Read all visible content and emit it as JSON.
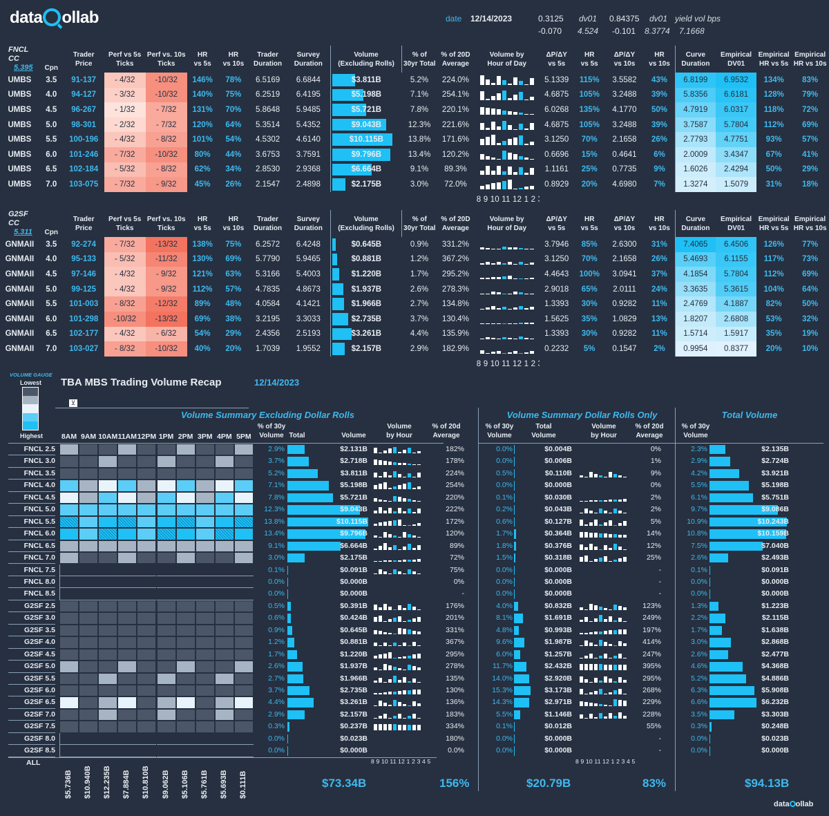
{
  "brand": {
    "name_pre": "data",
    "name_post": "ollab"
  },
  "header": {
    "date_label": "date",
    "date": "12/14/2023",
    "r1": [
      "0.3125",
      "dv01",
      "0.84375",
      "dv01",
      "yield vol bps"
    ],
    "r2": [
      "-0.070",
      "4.524",
      "-0.101",
      "8.3774",
      "7.1668"
    ]
  },
  "cols": {
    "cpn": "Cpn",
    "trader": "Trader\nPrice",
    "p5": "Perf vs 5s\nTicks",
    "p10": "Perf vs. 10s\nTicks",
    "hr5": "HR\nvs 5s",
    "hr10": "HR\nvs 10s",
    "tdur": "Trader\nDuration",
    "sdur": "Survey\nDuration",
    "vol": "Volume\n(Excluding Rolls)",
    "pct30": "% of\n30yr Total",
    "pct20": "% of 20D\nAverage",
    "vbh": "Volume by\nHour of Day",
    "dpdy5": "ΔP/ΔY\nvs 5s",
    "hr5b": "HR\nvs 5s",
    "dpdy10": "ΔP/ΔY\nvs 10s",
    "hr10b": "HR\nvs 10s",
    "cdur": "Curve\nDuration",
    "edv": "Empirical\nDV01",
    "ehr5": "Empirical\nHR vs 5s",
    "ehr10": "Empirical\nHR vs 10s"
  },
  "fncl": {
    "title": "FNCL CC",
    "cc": "5.395",
    "rows": [
      [
        "UMBS",
        "3.5",
        "91-137",
        "- 4/32",
        "-10/32",
        "146%",
        "78%",
        "6.5169",
        "6.6844",
        "$3.811B",
        "5.2%",
        "224.0%",
        "5.1339",
        "115%",
        "3.5582",
        "43%",
        "6.8199",
        "6.9532",
        "134%",
        "83%"
      ],
      [
        "UMBS",
        "4.0",
        "94-127",
        "- 3/32",
        "-10/32",
        "140%",
        "75%",
        "6.2519",
        "6.4195",
        "$5.198B",
        "7.1%",
        "254.1%",
        "4.6875",
        "105%",
        "3.2488",
        "39%",
        "5.8356",
        "6.6181",
        "128%",
        "79%"
      ],
      [
        "UMBS",
        "4.5",
        "96-267",
        "- 1/32",
        "- 7/32",
        "131%",
        "70%",
        "5.8648",
        "5.9485",
        "$5.721B",
        "7.8%",
        "220.1%",
        "6.0268",
        "135%",
        "4.1770",
        "50%",
        "4.7919",
        "6.0317",
        "118%",
        "72%"
      ],
      [
        "UMBS",
        "5.0",
        "98-301",
        "- 2/32",
        "- 7/32",
        "120%",
        "64%",
        "5.3514",
        "5.4352",
        "$9.043B",
        "12.3%",
        "221.6%",
        "4.6875",
        "105%",
        "3.2488",
        "39%",
        "3.7587",
        "5.7804",
        "112%",
        "69%"
      ],
      [
        "UMBS",
        "5.5",
        "100-196",
        "- 4/32",
        "- 8/32",
        "101%",
        "54%",
        "4.5302",
        "4.6140",
        "$10.115B",
        "13.8%",
        "171.6%",
        "3.1250",
        "70%",
        "2.1658",
        "26%",
        "2.7793",
        "4.7751",
        "93%",
        "57%"
      ],
      [
        "UMBS",
        "6.0",
        "101-246",
        "- 7/32",
        "-10/32",
        "80%",
        "44%",
        "3.6753",
        "3.7591",
        "$9.796B",
        "13.4%",
        "120.2%",
        "0.6696",
        "15%",
        "0.4641",
        "6%",
        "2.0009",
        "3.4347",
        "67%",
        "41%"
      ],
      [
        "UMBS",
        "6.5",
        "102-184",
        "- 5/32",
        "- 8/32",
        "62%",
        "34%",
        "2.8530",
        "2.9368",
        "$6.664B",
        "9.1%",
        "89.3%",
        "1.1161",
        "25%",
        "0.7735",
        "9%",
        "1.6026",
        "2.4294",
        "50%",
        "29%"
      ],
      [
        "UMBS",
        "7.0",
        "103-075",
        "- 7/32",
        "- 9/32",
        "45%",
        "26%",
        "2.1547",
        "2.4898",
        "$2.175B",
        "3.0%",
        "72.0%",
        "0.8929",
        "20%",
        "4.6980",
        "7%",
        "1.3274",
        "1.5079",
        "31%",
        "18%"
      ]
    ]
  },
  "g2sf": {
    "title": "G2SF CC",
    "cc": "5.311",
    "rows": [
      [
        "GNMAII",
        "3.5",
        "92-274",
        "- 7/32",
        "-13/32",
        "138%",
        "75%",
        "6.2572",
        "6.4248",
        "$0.645B",
        "0.9%",
        "331.2%",
        "3.7946",
        "85%",
        "2.6300",
        "31%",
        "7.4065",
        "6.4506",
        "126%",
        "77%"
      ],
      [
        "GNMAII",
        "4.0",
        "95-133",
        "- 5/32",
        "-11/32",
        "130%",
        "69%",
        "5.7790",
        "5.9465",
        "$0.881B",
        "1.2%",
        "367.2%",
        "3.1250",
        "70%",
        "2.1658",
        "26%",
        "5.4693",
        "6.1155",
        "117%",
        "73%"
      ],
      [
        "GNMAII",
        "4.5",
        "97-146",
        "- 4/32",
        "- 9/32",
        "121%",
        "63%",
        "5.3166",
        "5.4003",
        "$1.220B",
        "1.7%",
        "295.2%",
        "4.4643",
        "100%",
        "3.0941",
        "37%",
        "4.1854",
        "5.7804",
        "112%",
        "69%"
      ],
      [
        "GNMAII",
        "5.0",
        "99-125",
        "- 4/32",
        "- 9/32",
        "112%",
        "57%",
        "4.7835",
        "4.8673",
        "$1.937B",
        "2.6%",
        "278.3%",
        "2.9018",
        "65%",
        "2.0111",
        "24%",
        "3.3635",
        "5.3615",
        "104%",
        "64%"
      ],
      [
        "GNMAII",
        "5.5",
        "101-003",
        "- 8/32",
        "-12/32",
        "89%",
        "48%",
        "4.0584",
        "4.1421",
        "$1.966B",
        "2.7%",
        "134.8%",
        "1.3393",
        "30%",
        "0.9282",
        "11%",
        "2.4769",
        "4.1887",
        "82%",
        "50%"
      ],
      [
        "GNMAII",
        "6.0",
        "101-298",
        "-10/32",
        "-13/32",
        "69%",
        "38%",
        "3.2195",
        "3.3033",
        "$2.735B",
        "3.7%",
        "130.4%",
        "1.5625",
        "35%",
        "1.0829",
        "13%",
        "1.8207",
        "2.6808",
        "53%",
        "32%"
      ],
      [
        "GNMAII",
        "6.5",
        "102-177",
        "- 4/32",
        "- 6/32",
        "54%",
        "29%",
        "2.4356",
        "2.5193",
        "$3.261B",
        "4.4%",
        "135.9%",
        "1.3393",
        "30%",
        "0.9282",
        "11%",
        "1.5714",
        "1.5917",
        "35%",
        "19%"
      ],
      [
        "GNMAII",
        "7.0",
        "103-027",
        "- 8/32",
        "-10/32",
        "40%",
        "20%",
        "1.7039",
        "1.9552",
        "$2.157B",
        "2.9%",
        "182.9%",
        "0.2232",
        "5%",
        "0.1547",
        "2%",
        "0.9954",
        "0.8377",
        "20%",
        "10%"
      ]
    ]
  },
  "hour_axis": "8 9 10 11 12 1 2 3 4 5",
  "recap": {
    "gauge_title": "VOLUME GAUGE",
    "lowest": "Lowest",
    "highest": "Highest",
    "title": "TBA MBS Trading Volume Recap",
    "date": "12/14/2023",
    "sec1": "Volume Summary Excluding Dollar Rolls",
    "sec2": "Volume Summary Dollar Rolls Only",
    "sec3": "Total Volume",
    "hours": [
      "8AM",
      "9AM",
      "10AM",
      "11AM",
      "12PM",
      "1PM",
      "2PM",
      "3PM",
      "4PM",
      "5PM"
    ],
    "h1": [
      "% of 30y\nVolume",
      "Total",
      "Volume",
      "Volume\nby Hour",
      "% of 20d\nAverage"
    ],
    "h2": [
      "% of 30y\nVolume",
      "Total\nVolume",
      "Volume\nby Hour",
      "% of 20d\nAverage"
    ],
    "h3": [
      "% of 30y\nVolume"
    ],
    "rows": [
      [
        "FNCL 2.5",
        "2.9%",
        "$2.131B",
        "182%",
        "0.0%",
        "$0.004B",
        "0%",
        "2.3%",
        "$2.135B"
      ],
      [
        "FNCL 3.0",
        "3.7%",
        "$2.718B",
        "178%",
        "0.0%",
        "$0.006B",
        "1%",
        "2.9%",
        "$2.724B"
      ],
      [
        "FNCL 3.5",
        "5.2%",
        "$3.811B",
        "224%",
        "0.5%",
        "$0.110B",
        "9%",
        "4.2%",
        "$3.921B"
      ],
      [
        "FNCL 4.0",
        "7.1%",
        "$5.198B",
        "254%",
        "0.0%",
        "$0.000B",
        "0%",
        "5.5%",
        "$5.198B"
      ],
      [
        "FNCL 4.5",
        "7.8%",
        "$5.721B",
        "220%",
        "0.1%",
        "$0.030B",
        "2%",
        "6.1%",
        "$5.751B"
      ],
      [
        "FNCL 5.0",
        "12.3%",
        "$9.043B",
        "222%",
        "0.2%",
        "$0.043B",
        "2%",
        "9.7%",
        "$9.086B"
      ],
      [
        "FNCL 5.5",
        "13.8%",
        "$10.115B",
        "172%",
        "0.6%",
        "$0.127B",
        "5%",
        "10.9%",
        "$10.243B"
      ],
      [
        "FNCL 6.0",
        "13.4%",
        "$9.796B",
        "120%",
        "1.7%",
        "$0.364B",
        "14%",
        "10.8%",
        "$10.159B"
      ],
      [
        "FNCL 6.5",
        "9.1%",
        "$6.664B",
        "89%",
        "1.8%",
        "$0.376B",
        "12%",
        "7.5%",
        "$7.040B"
      ],
      [
        "FNCL 7.0",
        "3.0%",
        "$2.175B",
        "72%",
        "1.5%",
        "$0.318B",
        "25%",
        "2.6%",
        "$2.493B"
      ],
      [
        "FNCL 7.5",
        "0.1%",
        "$0.091B",
        "75%",
        "0.0%",
        "$0.000B",
        "-",
        "0.1%",
        "$0.091B"
      ],
      [
        "FNCL 8.0",
        "0.0%",
        "$0.000B",
        "0%",
        "0.0%",
        "$0.000B",
        "-",
        "0.0%",
        "$0.000B"
      ],
      [
        "FNCL 8.5",
        "0.0%",
        "$0.000B",
        "-",
        "0.0%",
        "$0.000B",
        "-",
        "0.0%",
        "$0.000B"
      ],
      [
        "G2SF 2.5",
        "0.5%",
        "$0.391B",
        "176%",
        "4.0%",
        "$0.832B",
        "123%",
        "1.3%",
        "$1.223B"
      ],
      [
        "G2SF 3.0",
        "0.6%",
        "$0.424B",
        "201%",
        "8.1%",
        "$1.691B",
        "249%",
        "2.2%",
        "$2.115B"
      ],
      [
        "G2SF 3.5",
        "0.9%",
        "$0.645B",
        "331%",
        "4.8%",
        "$0.993B",
        "197%",
        "1.7%",
        "$1.638B"
      ],
      [
        "G2SF 4.0",
        "1.2%",
        "$0.881B",
        "367%",
        "9.6%",
        "$1.987B",
        "414%",
        "3.0%",
        "$2.868B"
      ],
      [
        "G2SF 4.5",
        "1.7%",
        "$1.220B",
        "295%",
        "6.0%",
        "$1.257B",
        "247%",
        "2.6%",
        "$2.477B"
      ],
      [
        "G2SF 5.0",
        "2.6%",
        "$1.937B",
        "278%",
        "11.7%",
        "$2.432B",
        "395%",
        "4.6%",
        "$4.368B"
      ],
      [
        "G2SF 5.5",
        "2.7%",
        "$1.966B",
        "135%",
        "14.0%",
        "$2.920B",
        "295%",
        "5.2%",
        "$4.886B"
      ],
      [
        "G2SF 6.0",
        "3.7%",
        "$2.735B",
        "130%",
        "15.3%",
        "$3.173B",
        "268%",
        "6.3%",
        "$5.908B"
      ],
      [
        "G2SF 6.5",
        "4.4%",
        "$3.261B",
        "136%",
        "14.3%",
        "$2.971B",
        "229%",
        "6.6%",
        "$6.232B"
      ],
      [
        "G2SF 7.0",
        "2.9%",
        "$2.157B",
        "183%",
        "5.5%",
        "$1.146B",
        "228%",
        "3.5%",
        "$3.303B"
      ],
      [
        "G2SF 7.5",
        "0.3%",
        "$0.237B",
        "334%",
        "0.1%",
        "$0.012B",
        "55%",
        "0.3%",
        "$0.248B"
      ],
      [
        "G2SF 8.0",
        "0.0%",
        "$0.023B",
        "180%",
        "0.0%",
        "$0.000B",
        "-",
        "0.0%",
        "$0.023B"
      ],
      [
        "G2SF 8.5",
        "0.0%",
        "$0.000B",
        "0.0%",
        "0.0%",
        "$0.000B",
        "-",
        "0.0%",
        "$0.000B"
      ]
    ],
    "all_label": "ALL",
    "hour_totals": [
      "$5.736B",
      "$10.940B",
      "$12.235B",
      "$7.884B",
      "$10.810B",
      "$9.062B",
      "$5.106B",
      "$5.761B",
      "$5.693B",
      "$0.111B"
    ],
    "tot1": "$73.34B",
    "tot1p": "156%",
    "tot2": "$20.79B",
    "tot2p": "83%",
    "tot3": "$94.13B"
  }
}
